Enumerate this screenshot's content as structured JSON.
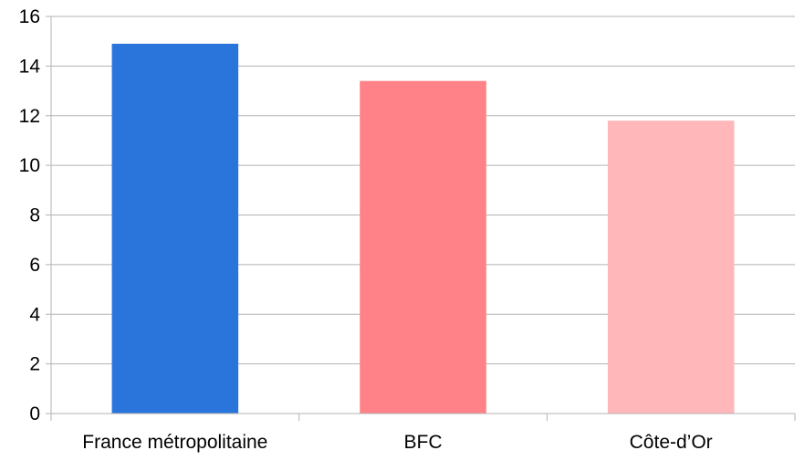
{
  "chart_data": {
    "type": "bar",
    "title": "",
    "xlabel": "",
    "ylabel": "",
    "categories": [
      "France métropolitaine",
      "BFC",
      "Côte-d’Or"
    ],
    "values": [
      14.9,
      13.4,
      11.8
    ],
    "colors": [
      "#2a75dc",
      "#ff8288",
      "#ffb7ba"
    ],
    "ylim": [
      0,
      16
    ],
    "yticks": [
      0,
      2,
      4,
      6,
      8,
      10,
      12,
      14,
      16
    ],
    "grid": true,
    "legend": "none"
  }
}
